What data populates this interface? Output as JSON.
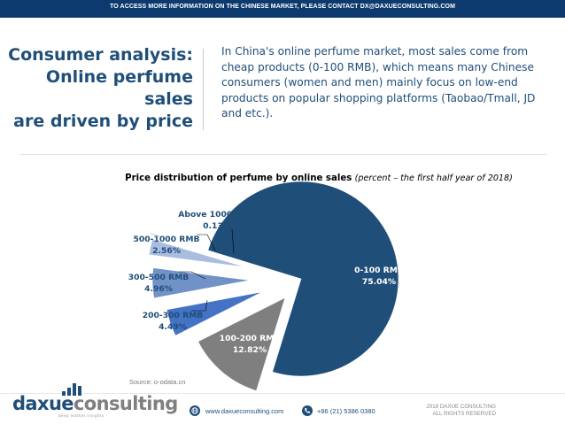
{
  "banner": {
    "text": "TO ACCESS MORE INFORMATION ON THE CHINESE MARKET, PLEASE CONTACT DX@DAXUECONSULTING.COM"
  },
  "headline": {
    "line1": "Consumer analysis:",
    "line2": "Online perfume sales",
    "line3": "are driven by price"
  },
  "intro": {
    "text": "In China's online perfume market, most sales come from cheap products (0-100 RMB), which means many Chinese consumers (women and men) mainly focus on low-end products on popular shopping platforms (Taobao/Tmall, JD and etc.)."
  },
  "chart_data": {
    "type": "pie",
    "title": "Price distribution of perfume by online sales",
    "subtitle": "(percent – the first half year of 2018)",
    "unit": "%",
    "slices": [
      {
        "label": "0-100 RMB",
        "value": 75.04,
        "value_label": "75.04%",
        "color": "#1f4e79"
      },
      {
        "label": "100-200 RMB",
        "value": 12.82,
        "value_label": "12.82%",
        "color": "#7f7f7f"
      },
      {
        "label": "200-300 RMB",
        "value": 4.49,
        "value_label": "4.49%",
        "color": "#4472c4"
      },
      {
        "label": "300-500 RMB",
        "value": 4.96,
        "value_label": "4.96%",
        "color": "#7092c6"
      },
      {
        "label": "500-1000 RMB",
        "value": 2.56,
        "value_label": "2.56%",
        "color": "#a9bde0"
      },
      {
        "label": "Above 1000 RMB",
        "value": 0.13,
        "value_label": "0.13%",
        "color": "#17375e"
      }
    ],
    "exploded": true,
    "source": "Source: o-odata.cn"
  },
  "footer": {
    "logo_part1": "daxue",
    "logo_part2": "consulting",
    "tagline": "deep market insights",
    "website": "www.daxueconsulting.com",
    "phone": "+86 (21) 5386 0380",
    "copyright_line1": "2018 DAXUE CONSULTING",
    "copyright_line2": "ALL RIGHTS RESERVED",
    "icons": {
      "website": "globe-icon",
      "phone": "phone-icon"
    }
  }
}
